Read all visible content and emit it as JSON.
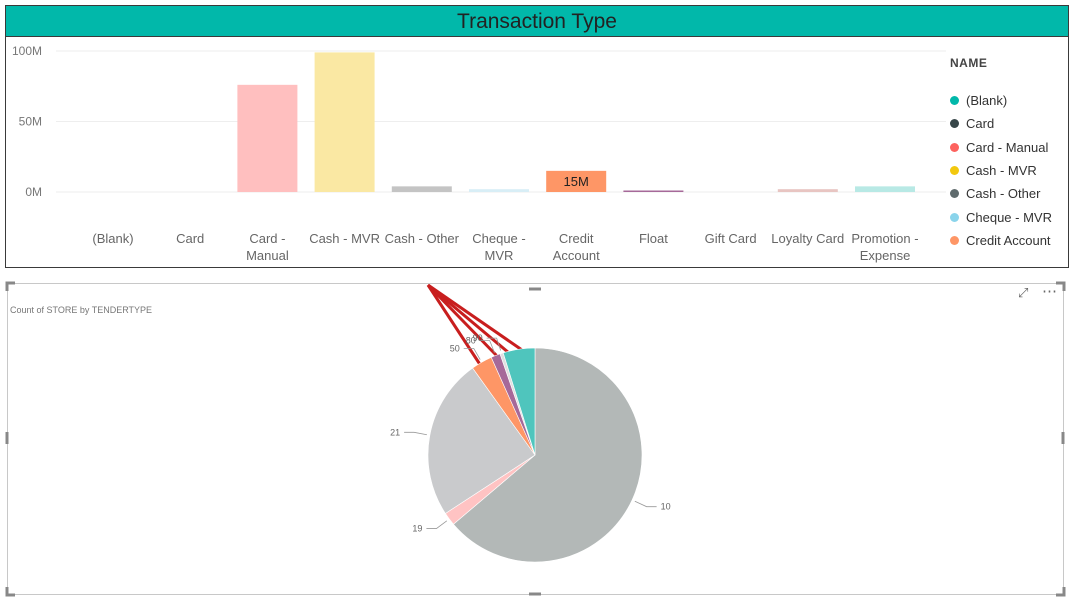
{
  "top_chart": {
    "title": "Transaction Type",
    "legend_title": "NAME",
    "legend_items": [
      {
        "label": "(Blank)",
        "color": "#01b8aa"
      },
      {
        "label": "Card",
        "color": "#374649"
      },
      {
        "label": "Card - Manual",
        "color": "#fd625e"
      },
      {
        "label": "Cash - MVR",
        "color": "#f2c80f"
      },
      {
        "label": "Cash - Other",
        "color": "#5f6b6d"
      },
      {
        "label": "Cheque - MVR",
        "color": "#8ad4eb"
      },
      {
        "label": "Credit Account",
        "color": "#fe9666"
      }
    ]
  },
  "pie_chart": {
    "title": "Count of STORE by TENDERTYPE",
    "more_icon": "more-options-icon",
    "focus_icon": "focus-mode-icon"
  },
  "chart_data": [
    {
      "type": "bar",
      "title": "Transaction Type",
      "categories": [
        "(Blank)",
        "Card",
        "Card - Manual",
        "Cash - MVR",
        "Cash - Other",
        "Cheque - MVR",
        "Credit Account",
        "Float",
        "Gift Card",
        "Loyalty Card",
        "Promotion - Expense"
      ],
      "category_lines": [
        [
          "(Blank)"
        ],
        [
          "Card"
        ],
        [
          "Card -",
          "Manual"
        ],
        [
          "Cash - MVR"
        ],
        [
          "Cash - Other"
        ],
        [
          "Cheque -",
          "MVR"
        ],
        [
          "Credit",
          "Account"
        ],
        [
          "Float"
        ],
        [
          "Gift Card"
        ],
        [
          "Loyalty Card"
        ],
        [
          "Promotion -",
          "Expense"
        ]
      ],
      "values": [
        0,
        0,
        76000000,
        99000000,
        4000000,
        2000000,
        15000000,
        500000,
        0,
        2000000,
        4000000
      ],
      "colors": [
        "#01b8aa",
        "#374649",
        "#ffbfbf",
        "#fae8a3",
        "#c4c4c4",
        "#d8eef6",
        "#fe9666",
        "#a66999",
        "#dfbfbf",
        "#e8c5c2",
        "#b8e9e5"
      ],
      "data_labels": [
        {
          "index": 6,
          "text": "15M"
        }
      ],
      "yticks": [
        "0M",
        "50M",
        "100M"
      ],
      "ytick_values": [
        0,
        50000000,
        100000000
      ],
      "ylim": [
        0,
        100000000
      ],
      "legend_position": "right"
    },
    {
      "type": "pie",
      "title": "Count of STORE by TENDERTYPE",
      "slices": [
        {
          "label": "10",
          "value": 63.8,
          "color": "#b3b8b7"
        },
        {
          "label": "19",
          "value": 2.0,
          "color": "#ffc3c3"
        },
        {
          "label": "21",
          "value": 24.3,
          "color": "#c9cacc"
        },
        {
          "label": "50",
          "value": 3.2,
          "color": "#fe9666"
        },
        {
          "label": "80",
          "value": 1.4,
          "color": "#a66999"
        },
        {
          "label": "90",
          "value": 0.5,
          "color": "#e0e0e0"
        },
        {
          "label": "",
          "value": 4.8,
          "color": "#4fc5bd"
        }
      ],
      "start_angle_deg": 0,
      "direction": "clockwise"
    }
  ]
}
